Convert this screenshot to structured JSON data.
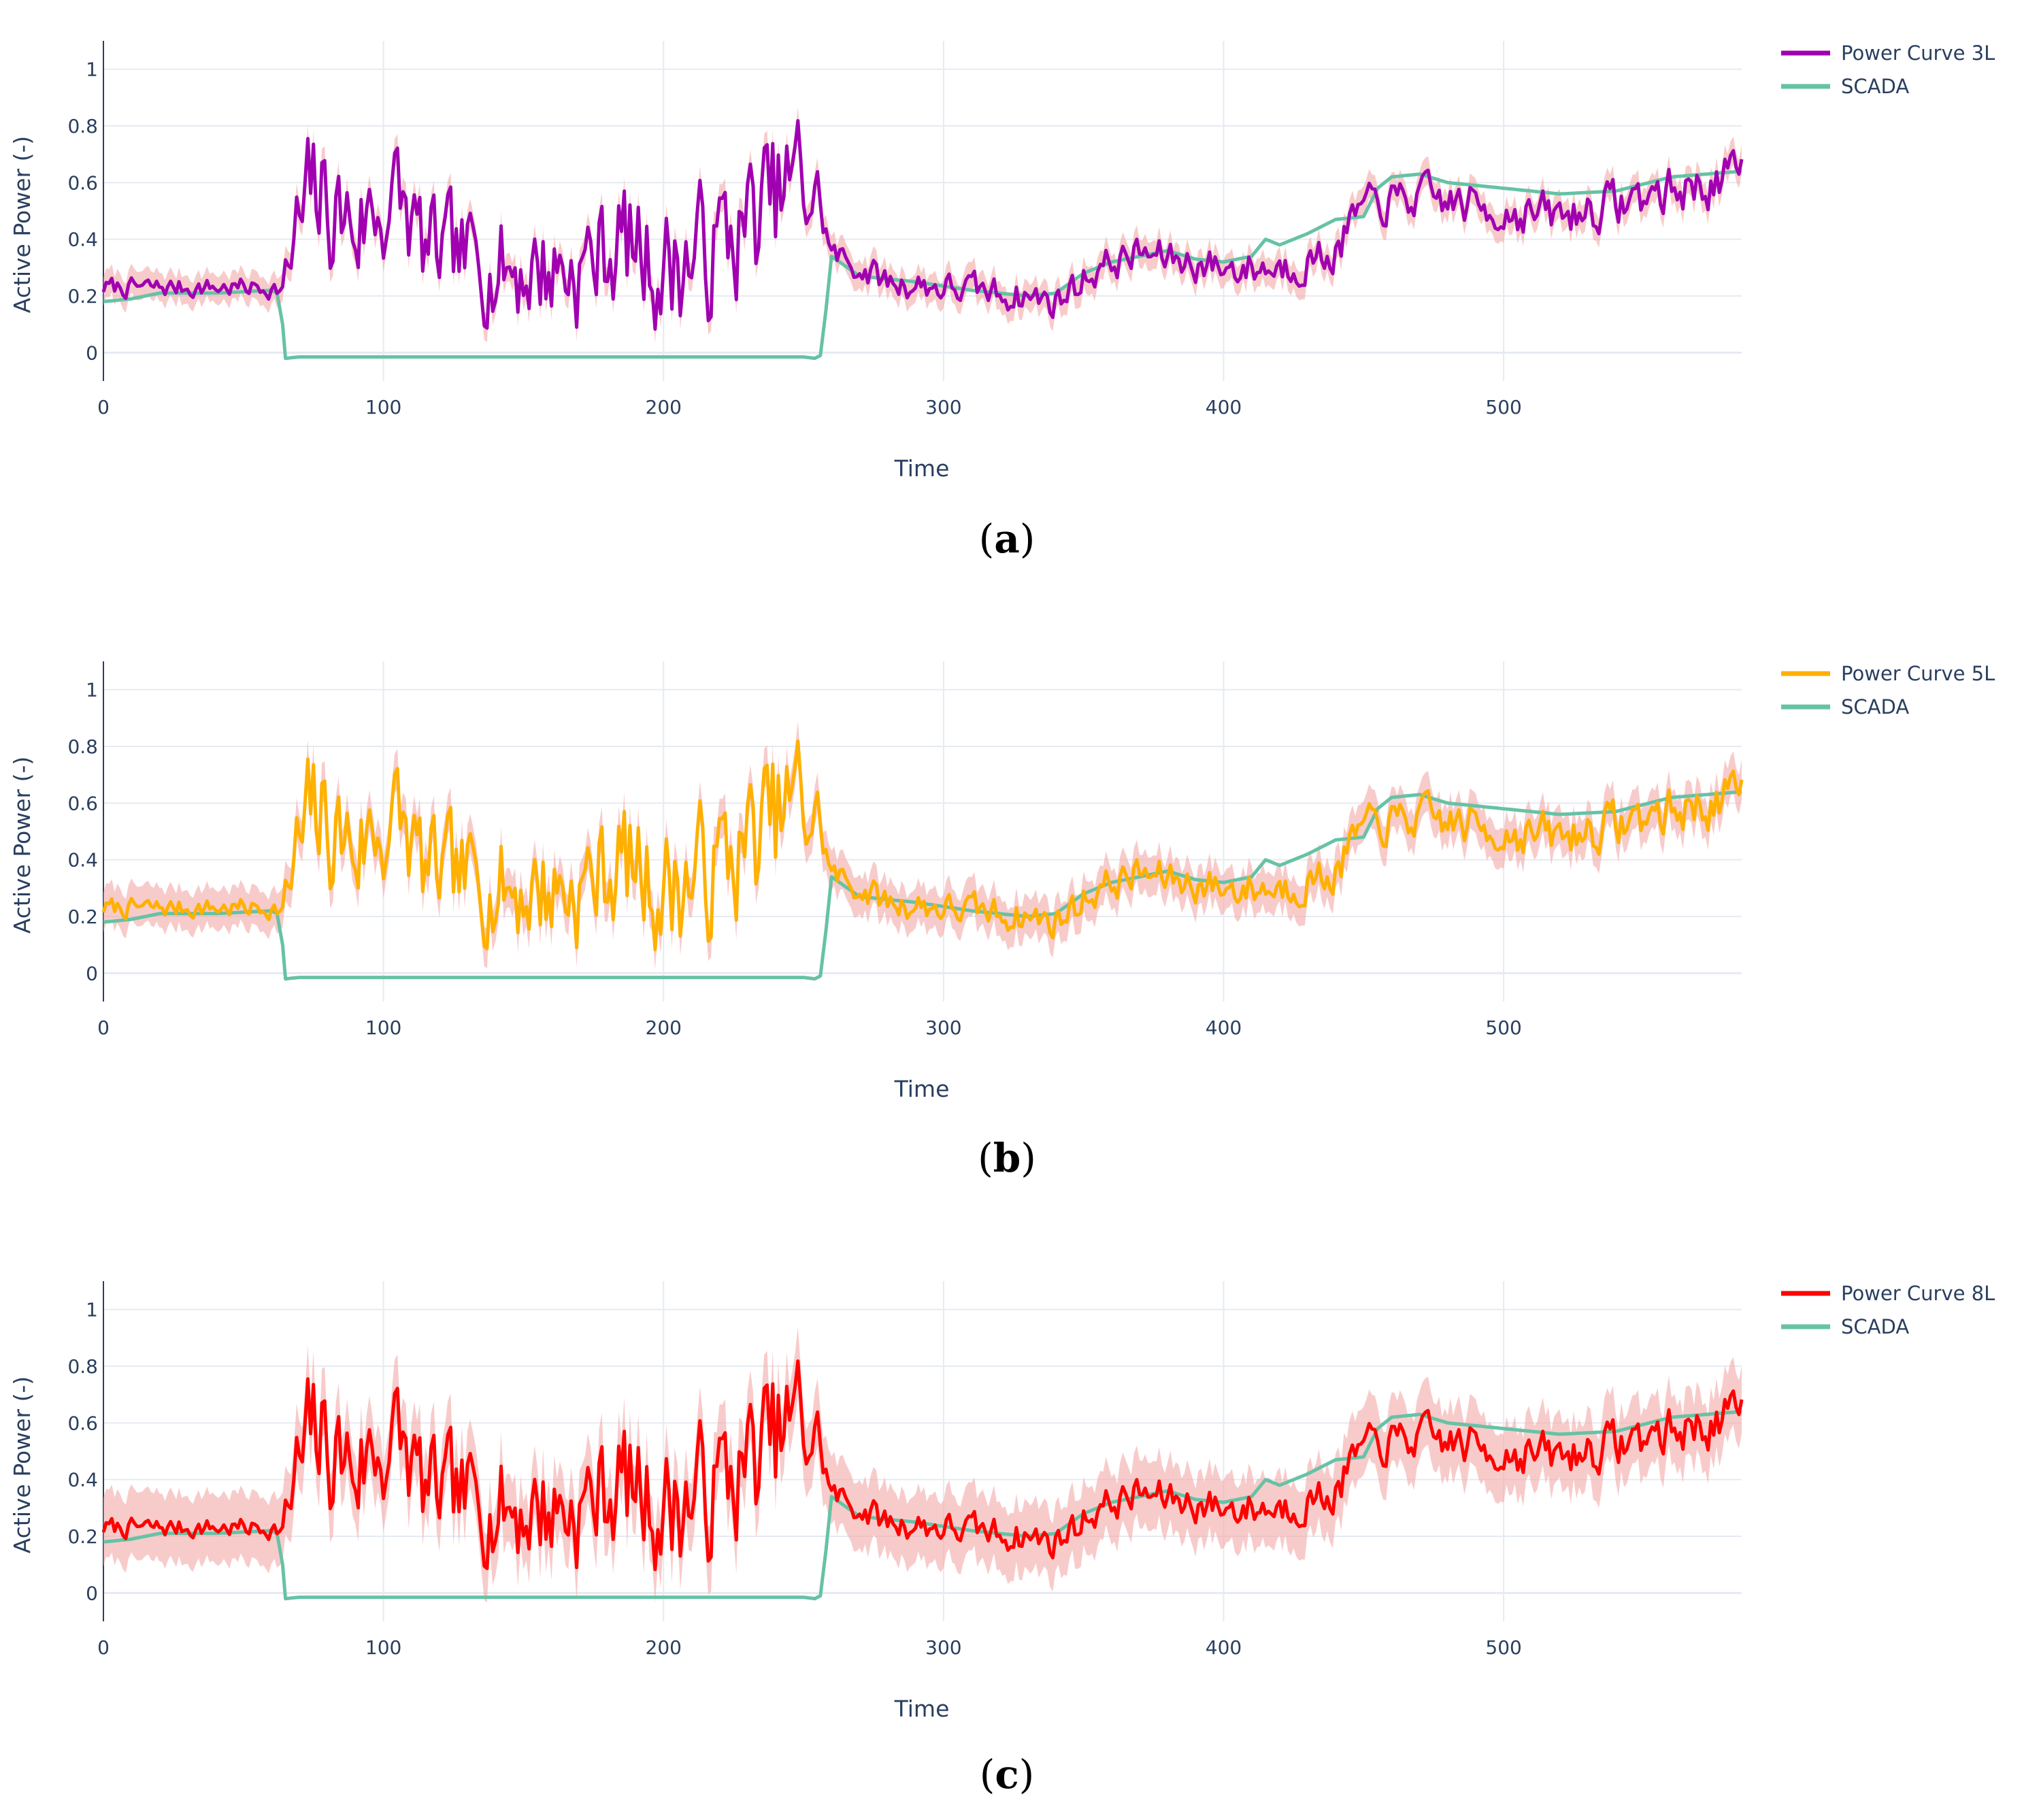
{
  "figure": {
    "captions": [
      "(a)",
      "(b)",
      "(c)"
    ]
  },
  "colors": {
    "scada": "#66c2a5",
    "band": "#f4a9a8",
    "grid": "#e6eaf2",
    "text": "#2a3f5f"
  },
  "chart_data": [
    {
      "type": "line",
      "panel": "a",
      "caption_letter": "a",
      "xlabel": "Time",
      "ylabel": "Active Power (-)",
      "xlim": [
        0,
        585
      ],
      "ylim": [
        -0.1,
        1.1
      ],
      "xticks": [
        0,
        100,
        200,
        300,
        400,
        500
      ],
      "yticks": [
        0,
        0.2,
        0.4,
        0.6,
        0.8,
        1
      ],
      "series": [
        {
          "name": "Power Curve 3L",
          "color": "#a000b0",
          "role": "prediction",
          "band_halfwidth": 0.05
        },
        {
          "name": "SCADA",
          "color": "#66c2a5",
          "role": "measured"
        }
      ]
    },
    {
      "type": "line",
      "panel": "b",
      "caption_letter": "b",
      "xlabel": "Time",
      "ylabel": "Active Power (-)",
      "xlim": [
        0,
        585
      ],
      "ylim": [
        -0.1,
        1.1
      ],
      "xticks": [
        0,
        100,
        200,
        300,
        400,
        500
      ],
      "yticks": [
        0,
        0.2,
        0.4,
        0.6,
        0.8,
        1
      ],
      "series": [
        {
          "name": "Power Curve 5L",
          "color": "#ffb000",
          "role": "prediction",
          "band_halfwidth": 0.07
        },
        {
          "name": "SCADA",
          "color": "#66c2a5",
          "role": "measured"
        }
      ]
    },
    {
      "type": "line",
      "panel": "c",
      "caption_letter": "c",
      "xlabel": "Time",
      "ylabel": "Active Power (-)",
      "xlim": [
        0,
        585
      ],
      "ylim": [
        -0.1,
        1.1
      ],
      "xticks": [
        0,
        100,
        200,
        300,
        400,
        500
      ],
      "yticks": [
        0,
        0.2,
        0.4,
        0.6,
        0.8,
        1
      ],
      "series": [
        {
          "name": "Power Curve 8L",
          "color": "#ff0000",
          "role": "prediction",
          "band_halfwidth": 0.12
        },
        {
          "name": "SCADA",
          "color": "#66c2a5",
          "role": "measured"
        }
      ]
    }
  ],
  "scada_profile": {
    "description_points_x": [
      0,
      10,
      20,
      40,
      60,
      62,
      64,
      65,
      70,
      100,
      150,
      200,
      250,
      254,
      256,
      258,
      260,
      270,
      290,
      310,
      330,
      340,
      350,
      360,
      380,
      390,
      400,
      410,
      415,
      420,
      430,
      440,
      450,
      455,
      460,
      470,
      480,
      500,
      520,
      540,
      560,
      585
    ],
    "description_points_y": [
      0.18,
      0.19,
      0.21,
      0.21,
      0.22,
      0.21,
      0.1,
      -0.02,
      -0.015,
      -0.015,
      -0.015,
      -0.015,
      -0.015,
      -0.02,
      -0.01,
      0.15,
      0.34,
      0.27,
      0.25,
      0.22,
      0.2,
      0.21,
      0.28,
      0.32,
      0.36,
      0.33,
      0.32,
      0.34,
      0.4,
      0.38,
      0.42,
      0.47,
      0.48,
      0.58,
      0.62,
      0.63,
      0.6,
      0.58,
      0.56,
      0.57,
      0.62,
      0.64
    ]
  },
  "prediction_profile": {
    "envelope_x": [
      0,
      60,
      64,
      68,
      75,
      90,
      105,
      115,
      140,
      170,
      185,
      200,
      215,
      230,
      248,
      255,
      260,
      280,
      310,
      330,
      340,
      355,
      370,
      400,
      420,
      440,
      448,
      455,
      470,
      500,
      520,
      550,
      585
    ],
    "envelope_y": [
      0.23,
      0.23,
      0.22,
      0.35,
      0.55,
      0.45,
      0.55,
      0.35,
      0.3,
      0.3,
      0.4,
      0.3,
      0.35,
      0.45,
      0.6,
      0.55,
      0.35,
      0.25,
      0.22,
      0.2,
      0.18,
      0.3,
      0.35,
      0.3,
      0.3,
      0.35,
      0.5,
      0.52,
      0.55,
      0.5,
      0.48,
      0.55,
      0.62
    ],
    "amplitude_x": [
      0,
      64,
      68,
      120,
      170,
      250,
      258,
      440,
      585
    ],
    "amplitude_y": [
      0.04,
      0.04,
      0.3,
      0.22,
      0.25,
      0.3,
      0.06,
      0.08,
      0.1
    ],
    "noise_seed": 7,
    "sample_step": 1
  }
}
